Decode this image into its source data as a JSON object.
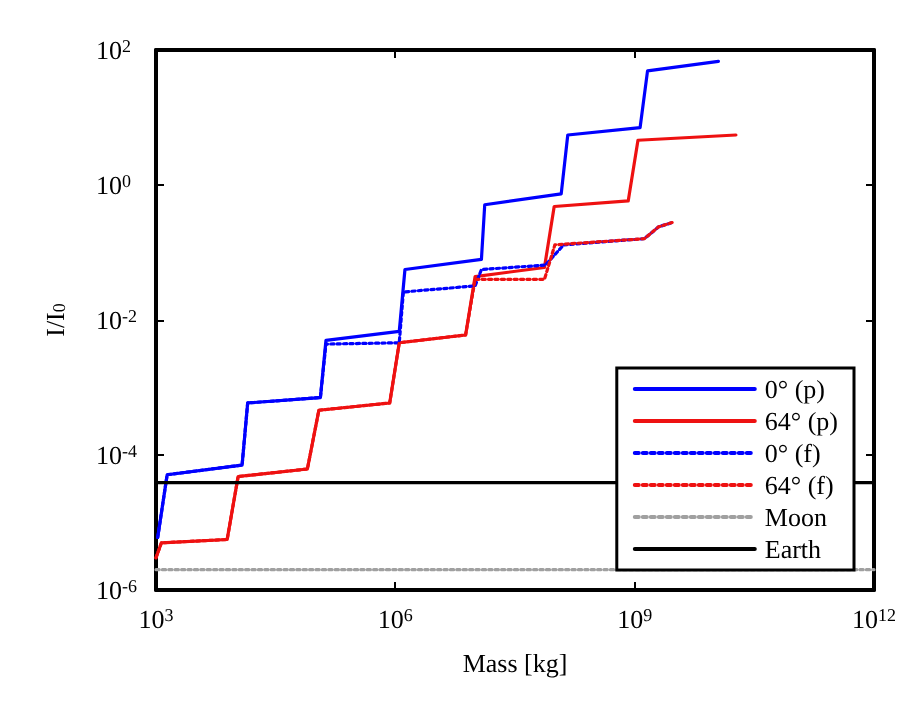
{
  "chart_data": {
    "type": "line",
    "xlabel": "Mass [kg]",
    "ylabel": "I/I$_{0}$",
    "log": "xy",
    "grid": false,
    "legend": "bottom right",
    "marker": "none",
    "xlim": [
      1000,
      1000000000000
    ],
    "xticks": [
      {
        "value": 1000,
        "label": "10$^{3}$"
      },
      {
        "value": 1000000,
        "label": "10$^{6}$"
      },
      {
        "value": 1000000000,
        "label": "10$^{9}$"
      },
      {
        "value": 1000000000000,
        "label": "10$^{12}$"
      }
    ],
    "ylim": [
      1e-06,
      100
    ],
    "yticks": [
      {
        "value": 1e-06,
        "label": "10$^{-6}$"
      },
      {
        "value": 0.0001,
        "label": "10$^{-4}$"
      },
      {
        "value": 0.01,
        "label": "10$^{-2}$"
      },
      {
        "value": 1,
        "label": "10$^{0}$"
      },
      {
        "value": 100,
        "label": "10$^{2}$"
      }
    ],
    "series": [
      {
        "name": "0° (p)",
        "color": "#0000ff",
        "line_style": "solid",
        "x": [
          1050,
          1380,
          12000,
          14100,
          115000,
          135000,
          1120000,
          1320000,
          12000000,
          13200000,
          120000000,
          145000000,
          1170000000,
          1450000000,
          11200000000
        ],
        "values": [
          6e-06,
          5.1e-05,
          7.1e-05,
          0.00059,
          0.00071,
          0.005,
          0.0068,
          0.056,
          0.079,
          0.51,
          0.74,
          5.5,
          7.1,
          49,
          68
        ]
      },
      {
        "name": "64° (p)",
        "color": "#ee1111",
        "line_style": "solid",
        "x": [
          1000,
          1170,
          7800,
          10700,
          79000,
          110000,
          850000,
          1120000,
          7600000,
          10000000,
          74000000,
          98000000,
          830000000,
          1100000000,
          18600000000
        ],
        "values": [
          3e-06,
          5e-06,
          5.6e-06,
          4.8e-05,
          6.2e-05,
          0.00046,
          0.00059,
          0.0046,
          0.006,
          0.044,
          0.06,
          0.48,
          0.58,
          4.6,
          5.5
        ]
      },
      {
        "name": "0° (f)",
        "color": "#0000ff",
        "line_style": "dotted",
        "x": [
          1050,
          1380,
          12000,
          14100,
          115000,
          135000,
          1120000,
          1260000,
          10000000,
          12000000,
          76000000,
          129000000,
          1320000000,
          2000000000,
          3000000000
        ],
        "values": [
          6e-06,
          5.1e-05,
          7.1e-05,
          0.00059,
          0.00071,
          0.0044,
          0.0046,
          0.026,
          0.032,
          0.056,
          0.065,
          0.13,
          0.16,
          0.24,
          0.28
        ]
      },
      {
        "name": "64° (f)",
        "color": "#ee1111",
        "line_style": "dotted",
        "x": [
          1000,
          1170,
          7800,
          10700,
          79000,
          110000,
          850000,
          1120000,
          7600000,
          10000000,
          74000000,
          100000000,
          1320000000,
          2000000000,
          3000000000
        ],
        "values": [
          3e-06,
          5e-06,
          5.6e-06,
          4.8e-05,
          6.2e-05,
          0.00046,
          0.00059,
          0.0046,
          0.006,
          0.04,
          0.04,
          0.13,
          0.16,
          0.24,
          0.28
        ]
      },
      {
        "name": "Moon",
        "color": "#a0a0a0",
        "line_style": "dotted",
        "x": [
          1000,
          1000000000000
        ],
        "values": [
          2e-06,
          2e-06
        ]
      },
      {
        "name": "Earth",
        "color": "#000000",
        "line_style": "solid",
        "x": [
          1000,
          1000000000000
        ],
        "values": [
          3.9e-05,
          3.9e-05
        ]
      }
    ]
  }
}
